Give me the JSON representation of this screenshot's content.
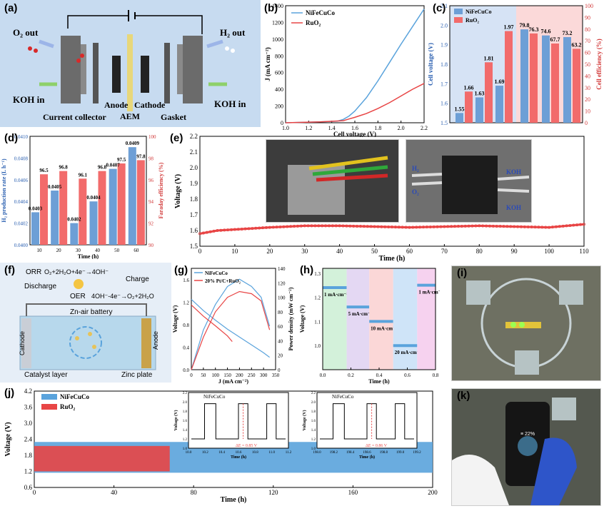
{
  "panels": {
    "a": {
      "label": "(a)",
      "o2_out": "O₂ out",
      "h2_out": "H₂ out",
      "koh_in_left": "KOH in",
      "koh_in_right": "KOH in",
      "current_collector": "Current collector",
      "anode": "Anode",
      "aem": "AEM",
      "cathode": "Cathode",
      "gasket": "Gasket"
    },
    "b": {
      "label": "(b)"
    },
    "c": {
      "label": "(c)"
    },
    "d": {
      "label": "(d)"
    },
    "e": {
      "label": "(e)",
      "photo_h2": "H₂",
      "photo_o2": "O₂",
      "photo_koh1": "KOH",
      "photo_koh2": "KOH"
    },
    "f": {
      "label": "(f)",
      "orr": "ORR",
      "orr_eq": "O₂+2H₂O+4e⁻→4OH⁻",
      "oer": "OER",
      "oer_eq": "4OH⁻-4e⁻→O₂+2H₂O",
      "discharge": "Discharge",
      "charge": "Charge",
      "battery": "Zn-air battery",
      "cathode": "Cathode",
      "anode": "Anode",
      "catalyst_layer": "Catalyst layer",
      "zinc_plate": "Zinc plate"
    },
    "g": {
      "label": "(g)"
    },
    "h": {
      "label": "(h)"
    },
    "i": {
      "label": "(i)"
    },
    "j": {
      "label": "(j)",
      "inset1_legend": "NiFeCuCo",
      "inset1_delta": "ΔE = 0.85 V",
      "inset2_legend": "NiFeCuCo",
      "inset2_delta": "ΔE = 0.86 V"
    },
    "k": {
      "label": "(k)",
      "phone_text": "≡ 22%"
    }
  },
  "colors": {
    "blue": "#5aa3dc",
    "red": "#e84545",
    "bar_blue": "#6d9fd6",
    "bar_red": "#f26b6b"
  },
  "chart_data": [
    {
      "id": "b",
      "type": "line",
      "title": "",
      "xlabel": "Cell voltage (V)",
      "ylabel": "J (mA cm⁻²)",
      "xlim": [
        1.0,
        2.2
      ],
      "ylim": [
        0,
        1400
      ],
      "xticks": [
        "1.0",
        "1.2",
        "1.4",
        "1.6",
        "1.8",
        "2.0",
        "2.2"
      ],
      "yticks": [
        "0",
        "200",
        "400",
        "600",
        "800",
        "1000",
        "1200",
        "1400"
      ],
      "series": [
        {
          "name": "NiFeCuCo",
          "color": "#5aa3dc",
          "x": [
            1.0,
            1.3,
            1.45,
            1.5,
            1.55,
            1.6,
            1.7,
            1.8,
            1.9,
            2.0,
            2.1,
            2.2
          ],
          "y": [
            0,
            10,
            20,
            40,
            80,
            140,
            300,
            500,
            720,
            940,
            1150,
            1360
          ]
        },
        {
          "name": "RuO₂",
          "legend": "RuO₂",
          "color": "#e84545",
          "x": [
            1.0,
            1.3,
            1.5,
            1.55,
            1.6,
            1.7,
            1.8,
            1.9,
            2.0,
            2.1,
            2.2
          ],
          "y": [
            0,
            10,
            25,
            45,
            65,
            110,
            170,
            240,
            320,
            400,
            470
          ]
        }
      ]
    },
    {
      "id": "c",
      "type": "bar",
      "xlabel": "",
      "ylabel": "Cell voltage (V)",
      "ylabel2": "Cell efficiency (%)",
      "ylim": [
        1.5,
        2.1
      ],
      "ylim2": [
        0,
        100
      ],
      "yticks": [
        "1.5",
        "1.6",
        "1.7",
        "1.8",
        "1.9",
        "2.0",
        "2.1"
      ],
      "yticks2": [
        "0",
        "10",
        "20",
        "30",
        "40",
        "50",
        "60",
        "70",
        "80",
        "90",
        "100"
      ],
      "legend": [
        "NiFeCuCo",
        "RuO₂"
      ],
      "voltage_groups": [
        {
          "ni": 1.55,
          "ru": 1.66
        },
        {
          "ni": 1.63,
          "ru": 1.81
        },
        {
          "ni": 1.69,
          "ru": 1.97
        }
      ],
      "efficiency_groups": [
        {
          "ni": 79.8,
          "ru": 76.3
        },
        {
          "ni": 74.6,
          "ru": 67.7
        },
        {
          "ni": 73.2,
          "ru": 63.2
        }
      ],
      "labels": [
        "1.55",
        "1.66",
        "1.63",
        "1.81",
        "1.69",
        "1.97",
        "79.8",
        "76.3",
        "74.6",
        "67.7",
        "73.2",
        "63.2"
      ]
    },
    {
      "id": "d",
      "type": "bar",
      "xlabel": "Time (h)",
      "ylabel": "H₂ production rate (L h⁻¹)",
      "ylabel2": "Faraday efficiency (%)",
      "categories": [
        "10",
        "20",
        "30",
        "40",
        "50",
        "60"
      ],
      "ylim": [
        0.04,
        0.041
      ],
      "ylim2": [
        90,
        100
      ],
      "yticks": [
        "0.0400",
        "0.0402",
        "0.0404",
        "0.0406",
        "0.0408",
        "0.0410"
      ],
      "yticks2": [
        "90",
        "92",
        "94",
        "96",
        "98",
        "100"
      ],
      "rate": [
        0.0403,
        0.0405,
        0.0402,
        0.0404,
        0.0407,
        0.0409
      ],
      "rate_labels": [
        "0.0403",
        "0.0405",
        "0.0402",
        "0.0404",
        "0.0407",
        "0.0409"
      ],
      "faraday": [
        96.5,
        96.8,
        96.1,
        96.8,
        97.5,
        97.8
      ],
      "faraday_labels": [
        "96.5",
        "96.8",
        "96.1",
        "96.8",
        "97.5",
        "97.8"
      ]
    },
    {
      "id": "e",
      "type": "line",
      "xlabel": "Time (h)",
      "ylabel": "Voltage (V)",
      "xlim": [
        0,
        110
      ],
      "ylim": [
        1.5,
        2.2
      ],
      "xticks": [
        "0",
        "10",
        "20",
        "30",
        "40",
        "50",
        "60",
        "70",
        "80",
        "90",
        "100",
        "110"
      ],
      "yticks": [
        "1.5",
        "1.6",
        "1.7",
        "1.8",
        "1.9",
        "2.0",
        "2.1",
        "2.2"
      ],
      "series": [
        {
          "name": "NiFeCuCo",
          "color": "#e84545",
          "x": [
            0,
            5,
            20,
            30,
            40,
            60,
            80,
            100,
            110
          ],
          "y": [
            1.58,
            1.6,
            1.62,
            1.63,
            1.63,
            1.62,
            1.63,
            1.62,
            1.64
          ]
        }
      ]
    },
    {
      "id": "g",
      "type": "line",
      "xlabel": "J (mA cm⁻²)",
      "ylabel": "Voltage (V)",
      "ylabel2": "Power density (mW cm⁻²)",
      "xlim": [
        0,
        350
      ],
      "ylim": [
        0,
        1.8
      ],
      "ylim2": [
        0,
        140
      ],
      "xticks": [
        "0",
        "50",
        "100",
        "150",
        "200",
        "250",
        "300",
        "350"
      ],
      "yticks": [
        "0.0",
        "0.4",
        "0.8",
        "1.2",
        "1.6"
      ],
      "yticks2": [
        "0",
        "20",
        "40",
        "60",
        "80",
        "100",
        "120",
        "140"
      ],
      "series": [
        {
          "name": "NiFeCuCo",
          "color": "#5aa3dc",
          "voltage_x": [
            0,
            50,
            100,
            150,
            200,
            250,
            300,
            325
          ],
          "voltage_y": [
            1.25,
            1.05,
            0.88,
            0.72,
            0.58,
            0.44,
            0.3,
            0.22
          ],
          "power_x": [
            0,
            50,
            100,
            150,
            200,
            250,
            290,
            325
          ],
          "power_y": [
            0,
            55,
            90,
            115,
            125,
            115,
            100,
            60
          ]
        },
        {
          "name": "20% Pt/C+RuO₂",
          "color": "#e84545",
          "voltage_x": [
            0,
            50,
            100,
            150,
            170
          ],
          "voltage_y": [
            1.15,
            0.95,
            0.78,
            0.6,
            0.5
          ],
          "power_x": [
            0,
            50,
            100,
            150,
            200,
            250,
            290,
            325
          ],
          "power_y": [
            0,
            45,
            80,
            100,
            108,
            105,
            95,
            55
          ]
        }
      ]
    },
    {
      "id": "h",
      "type": "line",
      "xlabel": "Time (h)",
      "ylabel": "Voltage (V)",
      "xlim": [
        0,
        0.8
      ],
      "ylim": [
        0.9,
        1.32
      ],
      "xticks": [
        "0.0",
        "0.2",
        "0.4",
        "0.6",
        "0.8"
      ],
      "yticks": [
        "1.0",
        "1.1",
        "1.2",
        "1.3"
      ],
      "steps": [
        {
          "label": "1 mA·cm⁻²",
          "t0": 0.0,
          "t1": 0.17,
          "v": 1.24
        },
        {
          "label": "5 mA·cm⁻²",
          "t0": 0.17,
          "t1": 0.33,
          "v": 1.16
        },
        {
          "label": "10 mA·cm⁻²",
          "t0": 0.33,
          "t1": 0.5,
          "v": 1.1
        },
        {
          "label": "20 mA·cm⁻²",
          "t0": 0.5,
          "t1": 0.67,
          "v": 1.0
        },
        {
          "label": "1 mA·cm⁻²",
          "t0": 0.67,
          "t1": 0.8,
          "v": 1.25
        }
      ]
    },
    {
      "id": "j",
      "type": "area",
      "xlabel": "Time (h)",
      "ylabel": "Voltage (V)",
      "xlim": [
        0,
        200
      ],
      "ylim": [
        0.6,
        4.2
      ],
      "xticks": [
        "0",
        "40",
        "80",
        "120",
        "160",
        "200"
      ],
      "yticks": [
        "0.6",
        "1.2",
        "1.8",
        "2.4",
        "3.0",
        "3.6",
        "4.2"
      ],
      "series": [
        {
          "name": "NiFeCuCo",
          "color": "#5aa3dc",
          "t_end": 200,
          "vmin": 1.15,
          "vmax": 2.3
        },
        {
          "name": "RuO₂",
          "legend": "RuO₂",
          "color": "#e84545",
          "t_end": 68,
          "vmin": 1.2,
          "vmax": 2.15
        }
      ],
      "insets": [
        {
          "xlabel": "Time (h)",
          "ylabel": "Voltage (V)",
          "xticks": [
            "10.0",
            "10.2",
            "10.4",
            "10.6",
            "10.8",
            "11.0",
            "11.2"
          ],
          "yticks": [
            "1.0",
            "1.2",
            "1.4",
            "1.6",
            "1.8",
            "2.0",
            "2.2"
          ]
        },
        {
          "xlabel": "Time (h)",
          "ylabel": "Voltage (V)",
          "xticks": [
            "198.0",
            "198.2",
            "198.4",
            "198.6",
            "198.8",
            "199.0",
            "199.2"
          ],
          "yticks": [
            "1.0",
            "1.2",
            "1.4",
            "1.6",
            "1.8",
            "2.0",
            "2.2"
          ]
        }
      ]
    }
  ]
}
